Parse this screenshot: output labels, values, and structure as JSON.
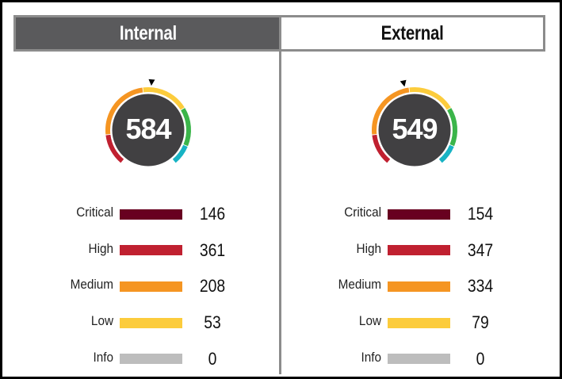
{
  "tabs": [
    {
      "label": "Internal",
      "active": true
    },
    {
      "label": "External",
      "active": false
    }
  ],
  "colors": {
    "critical": "#680020",
    "high": "#c02030",
    "medium": "#f59522",
    "low": "#fccc3c",
    "info": "#bdbdbd",
    "green": "#3bb54a",
    "teal": "#17b3c4",
    "gauge_center": "#414042",
    "header_active_bg": "#5a5a5c",
    "header_border": "#8c8c8c"
  },
  "panels": {
    "internal": {
      "score": "584",
      "marker_angle_deg": 4,
      "legend": [
        {
          "label": "Critical",
          "value": "146"
        },
        {
          "label": "High",
          "value": "361"
        },
        {
          "label": "Medium",
          "value": "208"
        },
        {
          "label": "Low",
          "value": "53"
        },
        {
          "label": "Info",
          "value": "0"
        }
      ]
    },
    "external": {
      "score": "549",
      "marker_angle_deg": -13,
      "legend": [
        {
          "label": "Critical",
          "value": "154"
        },
        {
          "label": "High",
          "value": "347"
        },
        {
          "label": "Medium",
          "value": "334"
        },
        {
          "label": "Low",
          "value": "79"
        },
        {
          "label": "Info",
          "value": "0"
        }
      ]
    }
  },
  "chart_data": [
    {
      "type": "bar",
      "title": "Internal",
      "score": 584,
      "categories": [
        "Critical",
        "High",
        "Medium",
        "Low",
        "Info"
      ],
      "values": [
        146,
        361,
        208,
        53,
        0
      ],
      "colors": [
        "#680020",
        "#c02030",
        "#f59522",
        "#fccc3c",
        "#bdbdbd"
      ]
    },
    {
      "type": "bar",
      "title": "External",
      "score": 549,
      "categories": [
        "Critical",
        "High",
        "Medium",
        "Low",
        "Info"
      ],
      "values": [
        154,
        347,
        334,
        79,
        0
      ],
      "colors": [
        "#680020",
        "#c02030",
        "#f59522",
        "#fccc3c",
        "#bdbdbd"
      ]
    }
  ]
}
